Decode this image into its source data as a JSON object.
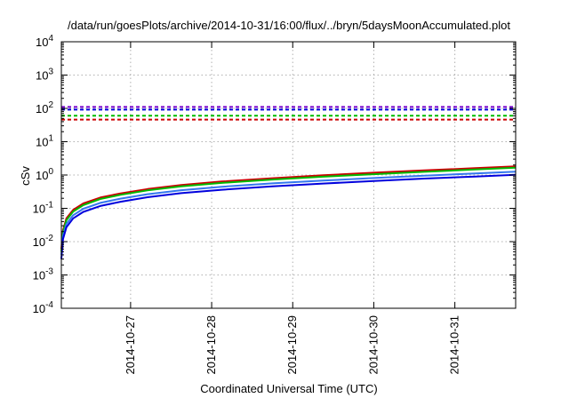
{
  "chart_data": {
    "type": "line",
    "title": "/data/run/goesPlots/archive/2014-10-31/16:00/flux/../bryn/5daysMoonAccumulated.plot",
    "xlabel": "Coordinated Universal Time (UTC)",
    "ylabel": "cSv",
    "yscale": "log",
    "ylim": [
      0.0001,
      10000
    ],
    "xlim": [
      "2014-10-26 03:30",
      "2014-10-31 18:00"
    ],
    "grid": true,
    "x_ticks": [
      "2014-10-27",
      "2014-10-28",
      "2014-10-29",
      "2014-10-30",
      "2014-10-31"
    ],
    "y_ticks": [
      {
        "value": 0.0001,
        "base": "10",
        "exp": "-4"
      },
      {
        "value": 0.001,
        "base": "10",
        "exp": "-3"
      },
      {
        "value": 0.01,
        "base": "10",
        "exp": "-2"
      },
      {
        "value": 0.1,
        "base": "10",
        "exp": "-1"
      },
      {
        "value": 1,
        "base": "10",
        "exp": "0"
      },
      {
        "value": 10,
        "base": "10",
        "exp": "1"
      },
      {
        "value": 100,
        "base": "10",
        "exp": "2"
      },
      {
        "value": 1000,
        "base": "10",
        "exp": "3"
      },
      {
        "value": 10000,
        "base": "10",
        "exp": "4"
      }
    ],
    "series": [
      {
        "color": "#cc0000",
        "style": "solid",
        "x": [
          "2014-10-26 03:30",
          "2014-10-26 04:00",
          "2014-10-26 05:00",
          "2014-10-26 07:00",
          "2014-10-26 10:00",
          "2014-10-26 15:00",
          "2014-10-26 21:00",
          "2014-10-27 05:00",
          "2014-10-27 15:00",
          "2014-10-28 03:00",
          "2014-10-28 18:00",
          "2014-10-29 09:00",
          "2014-10-30 00:00",
          "2014-10-30 15:00",
          "2014-10-31 06:00",
          "2014-10-31 18:00"
        ],
        "y": [
          0.006,
          0.022,
          0.05,
          0.09,
          0.14,
          0.21,
          0.28,
          0.38,
          0.5,
          0.64,
          0.8,
          0.98,
          1.17,
          1.38,
          1.6,
          1.82
        ]
      },
      {
        "color": "#00bb00",
        "style": "solid",
        "x": [
          "2014-10-26 03:30",
          "2014-10-26 04:00",
          "2014-10-26 05:00",
          "2014-10-26 07:00",
          "2014-10-26 10:00",
          "2014-10-26 15:00",
          "2014-10-26 21:00",
          "2014-10-27 05:00",
          "2014-10-27 15:00",
          "2014-10-28 03:00",
          "2014-10-28 18:00",
          "2014-10-29 09:00",
          "2014-10-30 00:00",
          "2014-10-30 15:00",
          "2014-10-31 06:00",
          "2014-10-31 18:00"
        ],
        "y": [
          0.005,
          0.019,
          0.044,
          0.08,
          0.125,
          0.19,
          0.255,
          0.345,
          0.455,
          0.58,
          0.73,
          0.89,
          1.06,
          1.25,
          1.46,
          1.65
        ]
      },
      {
        "color": "#3377ee",
        "style": "solid",
        "x": [
          "2014-10-26 03:30",
          "2014-10-26 04:00",
          "2014-10-26 05:00",
          "2014-10-26 07:00",
          "2014-10-26 10:00",
          "2014-10-26 15:00",
          "2014-10-26 21:00",
          "2014-10-27 05:00",
          "2014-10-27 15:00",
          "2014-10-28 03:00",
          "2014-10-28 18:00",
          "2014-10-29 09:00",
          "2014-10-30 00:00",
          "2014-10-30 15:00",
          "2014-10-31 06:00",
          "2014-10-31 18:00"
        ],
        "y": [
          0.004,
          0.015,
          0.034,
          0.062,
          0.097,
          0.145,
          0.195,
          0.265,
          0.35,
          0.445,
          0.56,
          0.68,
          0.81,
          0.96,
          1.11,
          1.26
        ]
      },
      {
        "color": "#0000dd",
        "style": "solid",
        "x": [
          "2014-10-26 03:30",
          "2014-10-26 04:00",
          "2014-10-26 05:00",
          "2014-10-26 07:00",
          "2014-10-26 10:00",
          "2014-10-26 15:00",
          "2014-10-26 21:00",
          "2014-10-27 05:00",
          "2014-10-27 15:00",
          "2014-10-28 03:00",
          "2014-10-28 18:00",
          "2014-10-29 09:00",
          "2014-10-30 00:00",
          "2014-10-30 15:00",
          "2014-10-31 06:00",
          "2014-10-31 18:00"
        ],
        "y": [
          0.003,
          0.012,
          0.027,
          0.05,
          0.078,
          0.117,
          0.158,
          0.215,
          0.285,
          0.36,
          0.455,
          0.555,
          0.66,
          0.78,
          0.9,
          1.02
        ]
      },
      {
        "color": "#7700cc",
        "style": "dashed",
        "x": [
          "2014-10-26 03:30",
          "2014-10-31 18:00"
        ],
        "y": [
          110,
          110
        ]
      },
      {
        "color": "#0000dd",
        "style": "dashed",
        "x": [
          "2014-10-26 03:30",
          "2014-10-31 18:00"
        ],
        "y": [
          92,
          92
        ]
      },
      {
        "color": "#00bb00",
        "style": "dashed",
        "x": [
          "2014-10-26 03:30",
          "2014-10-31 18:00"
        ],
        "y": [
          60,
          60
        ]
      },
      {
        "color": "#cc0000",
        "style": "dashed",
        "x": [
          "2014-10-26 03:30",
          "2014-10-31 18:00"
        ],
        "y": [
          46,
          46
        ]
      }
    ]
  }
}
